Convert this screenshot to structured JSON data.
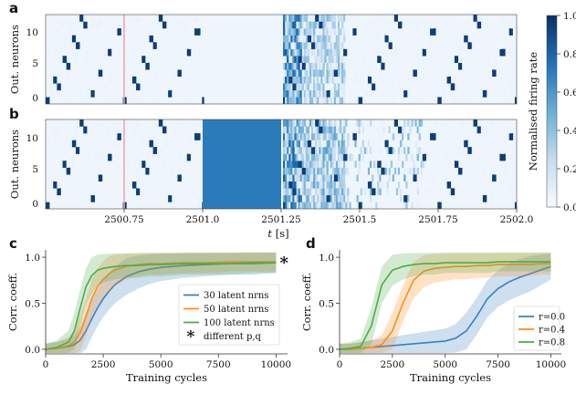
{
  "panels": {
    "a": {
      "label": "a",
      "ylabel": "Out. neurons",
      "yticks": [
        "0",
        "5",
        "10"
      ]
    },
    "b": {
      "label": "b",
      "ylabel": "Out. neurons",
      "yticks": [
        "0",
        "5",
        "10"
      ],
      "xticks": [
        "2500.75",
        "2501.0",
        "2501.25",
        "2501.5",
        "2501.75",
        "2502.0"
      ],
      "xlabel_italic": "t",
      "xlabel_unit": " [s]"
    },
    "c": {
      "label": "c"
    },
    "d": {
      "label": "d"
    }
  },
  "colorbar": {
    "label": "Normalised firing rate",
    "ticks": [
      "0.0",
      "0.2",
      "0.4",
      "0.6",
      "0.8",
      "1.0"
    ],
    "colors": [
      "#f7fbff",
      "#c6dbef",
      "#6baed6",
      "#2171b5",
      "#08306b"
    ]
  },
  "colors": {
    "salmon_marker": "#f4a0a8",
    "gap_block": "#2b7bba",
    "blue": "#3a7fc0",
    "orange": "#ff8c1a",
    "green": "#4aad4a"
  },
  "chart_data": [
    {
      "type": "heatmap",
      "panel": "a",
      "xlim": [
        2500.5,
        2502.0
      ],
      "ylim": [
        -0.5,
        12.5
      ],
      "n_neurons": 13,
      "colorbar_range": [
        0,
        1
      ]
    },
    {
      "type": "heatmap",
      "panel": "b",
      "xlim": [
        2500.5,
        2502.0
      ],
      "ylim": [
        -0.5,
        12.5
      ],
      "n_neurons": 13,
      "blocked_interval": [
        2501.0,
        2501.25
      ]
    },
    {
      "type": "line",
      "panel": "c",
      "xlabel": "Training cycles",
      "ylabel": "Corr. coeff.",
      "xlim": [
        0,
        10500
      ],
      "ylim": [
        -0.05,
        1.08
      ],
      "xticks": [
        "0",
        "2500",
        "5000",
        "7500",
        "10000"
      ],
      "yticks": [
        "0.0",
        "0.5",
        "1.0"
      ],
      "x": [
        0,
        500,
        1000,
        1250,
        1500,
        1750,
        2000,
        2250,
        2500,
        2750,
        3000,
        3500,
        4000,
        4500,
        5000,
        6000,
        7000,
        8000,
        9000,
        10000
      ],
      "series": [
        {
          "name": "30 latent nrns",
          "color": "blue",
          "values": [
            0.0,
            0.01,
            0.03,
            0.05,
            0.1,
            0.2,
            0.33,
            0.45,
            0.55,
            0.63,
            0.7,
            0.79,
            0.84,
            0.87,
            0.89,
            0.91,
            0.92,
            0.93,
            0.93,
            0.94
          ]
        },
        {
          "name": "50 latent nrns",
          "color": "orange",
          "values": [
            0.0,
            0.01,
            0.04,
            0.08,
            0.18,
            0.35,
            0.55,
            0.68,
            0.76,
            0.82,
            0.86,
            0.9,
            0.92,
            0.93,
            0.93,
            0.94,
            0.94,
            0.95,
            0.95,
            0.95
          ]
        },
        {
          "name": "100 latent nrns",
          "color": "green",
          "values": [
            0.0,
            0.02,
            0.08,
            0.2,
            0.45,
            0.68,
            0.8,
            0.86,
            0.88,
            0.89,
            0.9,
            0.91,
            0.91,
            0.92,
            0.92,
            0.93,
            0.93,
            0.93,
            0.94,
            0.94
          ]
        }
      ],
      "extra_marker": {
        "name": "different p,q",
        "x": 10350,
        "y": 0.94
      },
      "legend": "center-right"
    },
    {
      "type": "line",
      "panel": "d",
      "xlabel": "Training cycles",
      "ylabel": "Corr. coeff.",
      "xlim": [
        0,
        10500
      ],
      "ylim": [
        -0.05,
        1.08
      ],
      "xticks": [
        "0",
        "2500",
        "5000",
        "7500",
        "10000"
      ],
      "yticks": [
        "0.0",
        "0.5",
        "1.0"
      ],
      "x": [
        0,
        500,
        1000,
        1500,
        2000,
        2500,
        3000,
        3500,
        4000,
        4500,
        5000,
        5500,
        6000,
        6500,
        7000,
        7500,
        8000,
        8500,
        9000,
        9500,
        10000
      ],
      "series": [
        {
          "name": "r=0.0",
          "color": "blue",
          "values": [
            0.0,
            0.0,
            0.01,
            0.02,
            0.03,
            0.04,
            0.05,
            0.06,
            0.07,
            0.08,
            0.09,
            0.12,
            0.2,
            0.36,
            0.55,
            0.66,
            0.73,
            0.78,
            0.82,
            0.86,
            0.9
          ]
        },
        {
          "name": "r=0.4",
          "color": "orange",
          "values": [
            0.0,
            0.0,
            0.01,
            0.02,
            0.05,
            0.2,
            0.5,
            0.75,
            0.85,
            0.88,
            0.89,
            0.9,
            0.9,
            0.91,
            0.91,
            0.92,
            0.92,
            0.92,
            0.92,
            0.93,
            0.93
          ]
        },
        {
          "name": "r=0.8",
          "color": "green",
          "values": [
            0.0,
            0.01,
            0.03,
            0.25,
            0.7,
            0.86,
            0.9,
            0.92,
            0.93,
            0.93,
            0.94,
            0.94,
            0.94,
            0.94,
            0.94,
            0.95,
            0.95,
            0.95,
            0.95,
            0.95,
            0.95
          ]
        }
      ],
      "legend": "lower-right"
    }
  ]
}
